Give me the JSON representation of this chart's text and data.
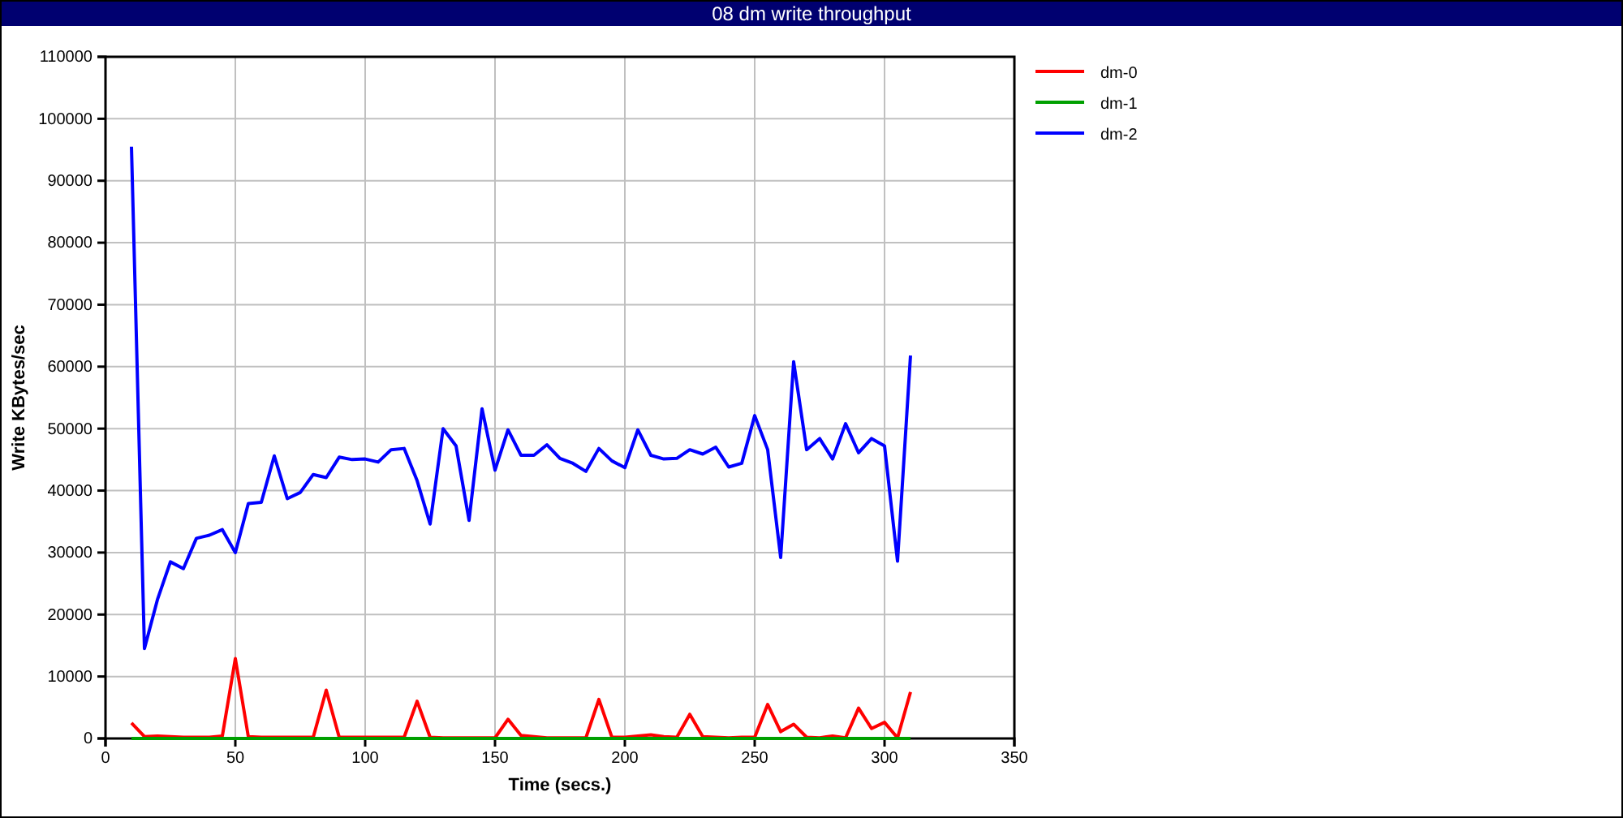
{
  "chart_data": {
    "type": "line",
    "title": "08 dm write throughput",
    "xlabel": "Time (secs.)",
    "ylabel": "Write KBytes/sec",
    "x": [
      10,
      15,
      20,
      25,
      30,
      35,
      40,
      45,
      50,
      55,
      60,
      65,
      70,
      75,
      80,
      85,
      90,
      95,
      100,
      105,
      110,
      115,
      120,
      125,
      130,
      135,
      140,
      145,
      150,
      155,
      160,
      165,
      170,
      175,
      180,
      185,
      190,
      195,
      200,
      205,
      210,
      215,
      220,
      225,
      230,
      235,
      240,
      245,
      250,
      255,
      260,
      265,
      270,
      275,
      280,
      285,
      290,
      295,
      300,
      305,
      310
    ],
    "series": [
      {
        "name": "dm-0",
        "color": "#ff0000",
        "values": [
          2500,
          300,
          400,
          300,
          200,
          200,
          200,
          400,
          12900,
          300,
          200,
          200,
          200,
          200,
          200,
          7800,
          200,
          200,
          200,
          200,
          200,
          200,
          6000,
          200,
          100,
          100,
          100,
          100,
          100,
          3100,
          500,
          300,
          100,
          100,
          100,
          100,
          6300,
          200,
          200,
          400,
          600,
          300,
          200,
          3900,
          300,
          200,
          100,
          200,
          200,
          5500,
          1100,
          2300,
          200,
          100,
          400,
          100,
          4900,
          1600,
          2600,
          100,
          7500
        ]
      },
      {
        "name": "dm-1",
        "color": "#00a000",
        "values": [
          0,
          0,
          0,
          0,
          0,
          0,
          0,
          0,
          0,
          0,
          0,
          0,
          0,
          0,
          0,
          0,
          0,
          0,
          0,
          0,
          0,
          0,
          0,
          0,
          0,
          0,
          0,
          0,
          0,
          0,
          0,
          0,
          0,
          0,
          0,
          0,
          0,
          0,
          0,
          0,
          0,
          0,
          0,
          0,
          0,
          0,
          0,
          0,
          0,
          0,
          0,
          0,
          0,
          0,
          0,
          0,
          0,
          0,
          0,
          0,
          0
        ]
      },
      {
        "name": "dm-2",
        "color": "#0000ff",
        "values": [
          95500,
          14500,
          22400,
          28500,
          27400,
          32300,
          32800,
          33700,
          30000,
          37900,
          38100,
          45600,
          38700,
          39700,
          42600,
          42100,
          45400,
          45000,
          45100,
          44600,
          46600,
          46800,
          41600,
          34600,
          50000,
          47200,
          35200,
          53200,
          43300,
          49800,
          45700,
          45700,
          47400,
          45200,
          44400,
          43100,
          46800,
          44800,
          43700,
          49800,
          45700,
          45100,
          45200,
          46600,
          45900,
          47000,
          43800,
          44400,
          52100,
          46600,
          29200,
          60800,
          46600,
          48400,
          45100,
          50800,
          46100,
          48400,
          47200,
          28600,
          61800
        ]
      }
    ],
    "xlim": [
      0,
      350
    ],
    "xticks": [
      0,
      50,
      100,
      150,
      200,
      250,
      300,
      350
    ],
    "ylim": [
      0,
      110000
    ],
    "yticks": [
      0,
      10000,
      20000,
      30000,
      40000,
      50000,
      60000,
      70000,
      80000,
      90000,
      100000,
      110000
    ],
    "grid": true,
    "legend": "top right"
  }
}
